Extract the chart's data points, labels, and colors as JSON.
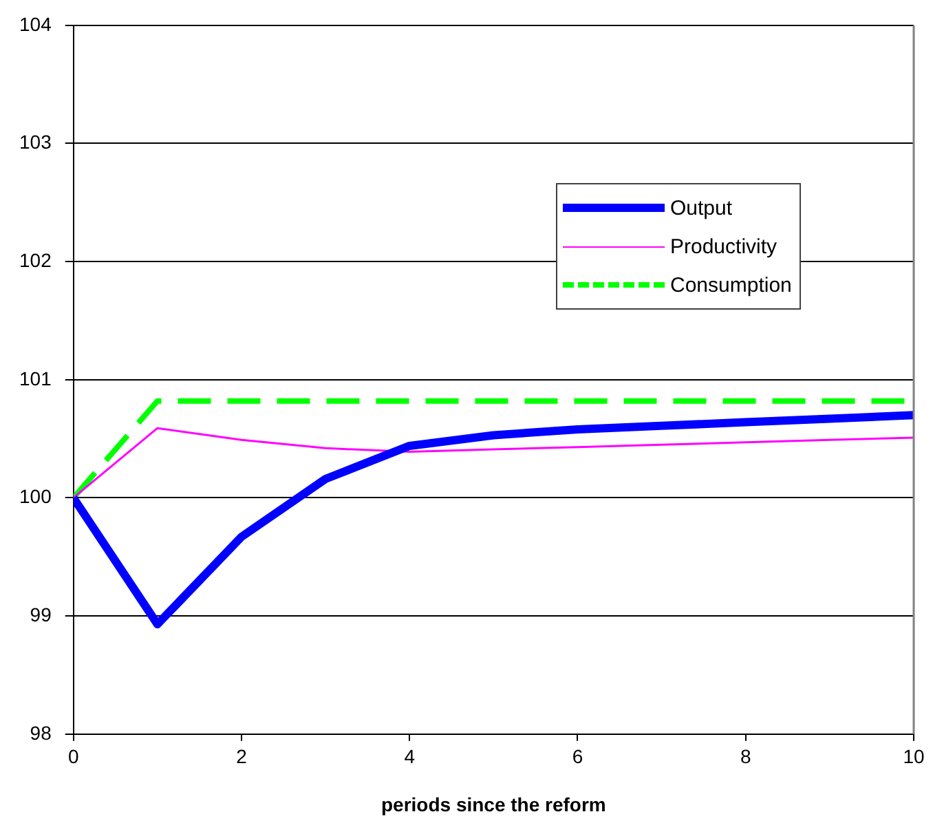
{
  "chart_data": {
    "type": "line",
    "xlabel": "periods since the reform",
    "x": [
      0,
      1,
      2,
      3,
      4,
      5,
      6,
      7,
      8,
      9,
      10
    ],
    "series": [
      {
        "name": "Output",
        "color": "#0000ff",
        "values": [
          100,
          98.93,
          99.67,
          100.16,
          100.44,
          100.53,
          100.58,
          100.61,
          100.64,
          100.67,
          100.7
        ]
      },
      {
        "name": "Productivity",
        "color": "#ff00ff",
        "values": [
          100,
          100.59,
          100.49,
          100.42,
          100.39,
          100.41,
          100.43,
          100.45,
          100.47,
          100.49,
          100.51
        ]
      },
      {
        "name": "Consumption",
        "color": "#00ff00",
        "line_style": "dashed",
        "values": [
          100,
          100.82,
          100.82,
          100.82,
          100.82,
          100.82,
          100.82,
          100.82,
          100.82,
          100.82,
          100.82
        ]
      }
    ],
    "xlim": [
      0,
      10
    ],
    "xticks": [
      0,
      2,
      4,
      6,
      8,
      10
    ],
    "ylim": [
      98,
      104
    ],
    "yticks": [
      98,
      99,
      100,
      101,
      102,
      103,
      104
    ],
    "grid": "y",
    "legend": "top right",
    "marker": "none"
  }
}
